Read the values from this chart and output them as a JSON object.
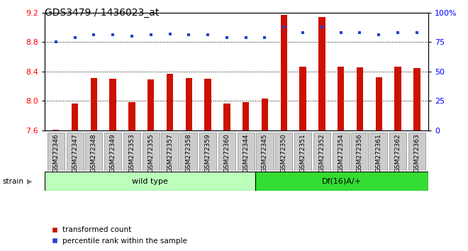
{
  "title": "GDS3479 / 1436023_at",
  "samples": [
    "GSM272346",
    "GSM272347",
    "GSM272348",
    "GSM272349",
    "GSM272353",
    "GSM272355",
    "GSM272357",
    "GSM272358",
    "GSM272359",
    "GSM272360",
    "GSM272344",
    "GSM272345",
    "GSM272350",
    "GSM272351",
    "GSM272352",
    "GSM272354",
    "GSM272356",
    "GSM272361",
    "GSM272362",
    "GSM272363"
  ],
  "transformed_count": [
    7.61,
    7.97,
    8.31,
    8.3,
    7.99,
    8.29,
    8.37,
    8.31,
    8.3,
    7.97,
    7.99,
    8.03,
    9.17,
    8.47,
    9.14,
    8.47,
    8.46,
    8.32,
    8.47,
    8.45
  ],
  "percentile_rank": [
    75,
    79,
    81,
    81,
    80,
    81,
    82,
    81,
    81,
    79,
    79,
    79,
    88,
    83,
    88,
    83,
    83,
    81,
    83,
    83
  ],
  "wild_type_count": 11,
  "df16_count": 9,
  "ylim_left": [
    7.6,
    9.2
  ],
  "ylim_right": [
    0,
    100
  ],
  "yticks_left": [
    7.6,
    8.0,
    8.4,
    8.8,
    9.2
  ],
  "yticks_right": [
    0,
    25,
    50,
    75,
    100
  ],
  "bar_color": "#cc1100",
  "dot_color": "#2244cc",
  "wild_type_bg": "#bbffbb",
  "df16_bg": "#33dd33",
  "label_bg": "#cccccc",
  "plot_bg": "#ffffff",
  "strain_label": "strain",
  "wild_type_label": "wild type",
  "df16_label": "Df(16)A/+",
  "legend_bar": "transformed count",
  "legend_dot": "percentile rank within the sample",
  "title_fontsize": 10,
  "tick_fontsize": 8,
  "label_fontsize": 6.5
}
